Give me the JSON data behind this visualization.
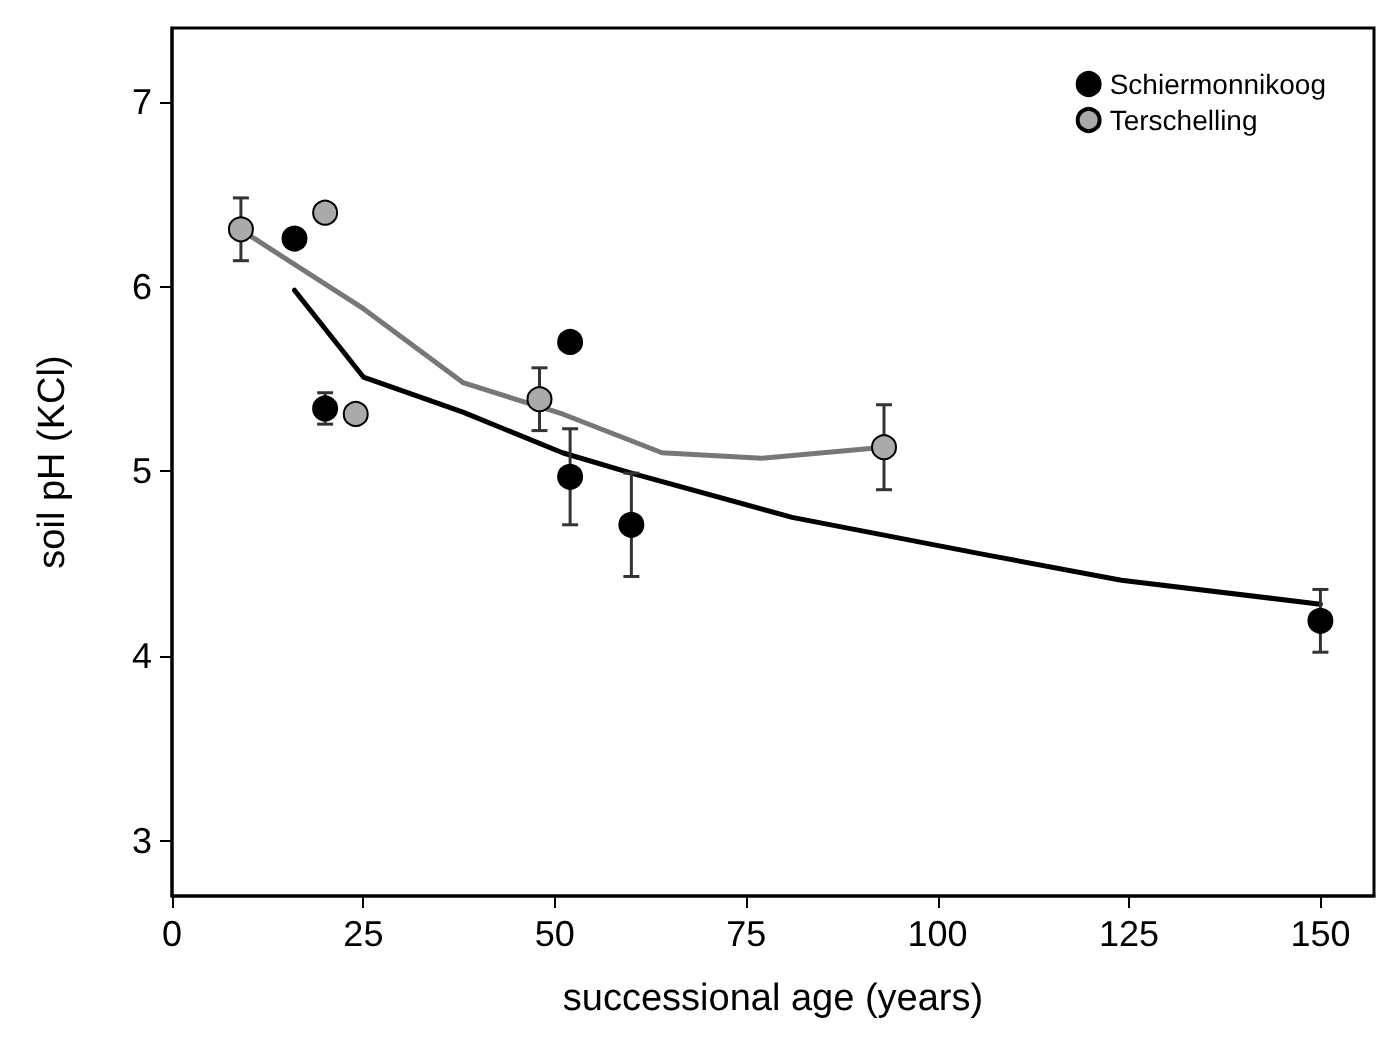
{
  "chart_data": {
    "type": "scatter",
    "xlabel": "successional age (years)",
    "ylabel": "soil pH (KCl)",
    "xlim": [
      0,
      157
    ],
    "xticks": [
      0,
      25,
      50,
      75,
      100,
      125,
      150
    ],
    "ylim": [
      2.7,
      7.4
    ],
    "yticks": [
      3,
      4,
      5,
      6,
      7
    ],
    "grid": false,
    "legend": "top right",
    "marker": "circle",
    "series": [
      {
        "name": "Schiermonnikoog",
        "color": "#000000",
        "x": [
          16,
          20,
          52,
          52,
          60,
          150
        ],
        "values": [
          6.26,
          5.34,
          5.7,
          4.97,
          4.71,
          4.19
        ],
        "errors": [
          null,
          0.085,
          null,
          0.26,
          0.28,
          0.17
        ]
      },
      {
        "name": "Terschelling",
        "color": "#aaaaaa",
        "x": [
          9,
          20,
          24,
          48,
          93
        ],
        "values": [
          6.31,
          6.4,
          5.31,
          5.39,
          5.13
        ],
        "errors": [
          0.17,
          null,
          null,
          0.17,
          0.23
        ]
      },
      {
        "type": "line",
        "marker": "none",
        "color": "#000000",
        "x": [
          16,
          25,
          38,
          51,
          60,
          81,
          106,
          124,
          150
        ],
        "values": [
          5.98,
          5.51,
          5.32,
          5.1,
          4.99,
          4.75,
          4.55,
          4.41,
          4.28
        ]
      },
      {
        "type": "line",
        "marker": "none",
        "color": "#777777",
        "x": [
          10,
          25,
          38,
          51,
          64,
          77,
          93
        ],
        "values": [
          6.28,
          5.88,
          5.48,
          5.31,
          5.1,
          5.07,
          5.13
        ]
      }
    ]
  }
}
